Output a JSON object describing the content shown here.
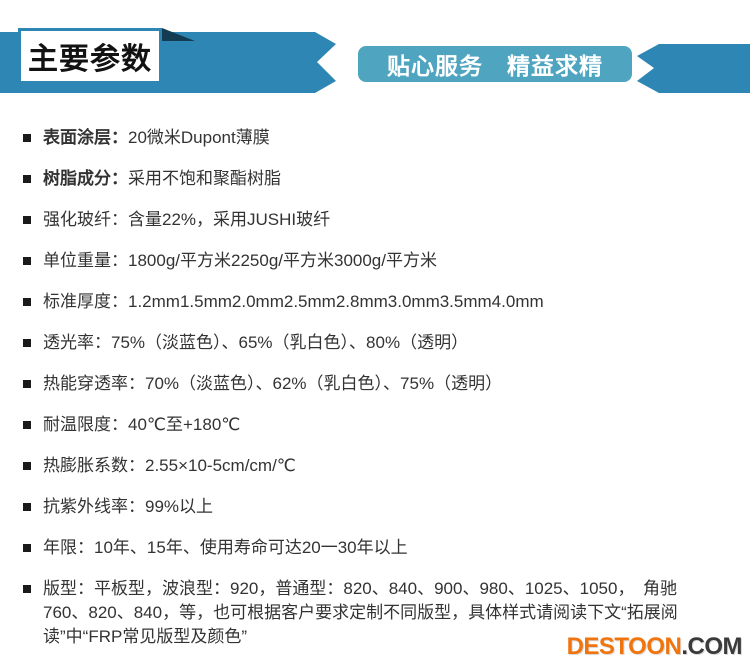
{
  "header": {
    "title": "主要参数",
    "slogan": "贴心服务　精益求精",
    "ribbon_color": "#2e86b5",
    "slogan_bg_color": "#4fa5c0",
    "fold_color": "#133c52"
  },
  "specs": {
    "items": [
      {
        "label": "表面涂层：",
        "value": "20微米Dupont薄膜"
      },
      {
        "label": "树脂成分：",
        "value": "采用不饱和聚酯树脂"
      },
      {
        "label": "强化玻纤：",
        "value": "含量22%，采用JUSHI玻纤"
      },
      {
        "label": "单位重量：",
        "value": "1800g/平方米2250g/平方米3000g/平方米"
      },
      {
        "label": "标准厚度：",
        "value": "1.2mm1.5mm2.0mm2.5mm2.8mm3.0mm3.5mm4.0mm"
      },
      {
        "label": "透光率：",
        "value": "75%（淡蓝色）、65%（乳白色）、80%（透明）"
      },
      {
        "label": "热能穿透率：",
        "value": "70%（淡蓝色）、62%（乳白色）、75%（透明）"
      },
      {
        "label": "耐温限度：",
        "value": "40℃至+180℃"
      },
      {
        "label": "热膨胀系数：",
        "value": "2.55×10-5cm/cm/℃"
      },
      {
        "label": "抗紫外线率：",
        "value": "99%以上"
      },
      {
        "label": "年限：",
        "value": "10年、15年、使用寿命可达20一30年以上"
      },
      {
        "label": "版型：",
        "value": "平板型，波浪型：920，普通型：820、840、900、980、1025、1050，　角驰760、820、840，等，也可根据客户要求定制不同版型，具体样式请阅读下文“拓展阅读”中“FRP常见版型及颜色”"
      }
    ]
  },
  "footer": {
    "brand_main": "DESTOON",
    "brand_suffix": ".COM",
    "brand_color": "#f0750f"
  }
}
